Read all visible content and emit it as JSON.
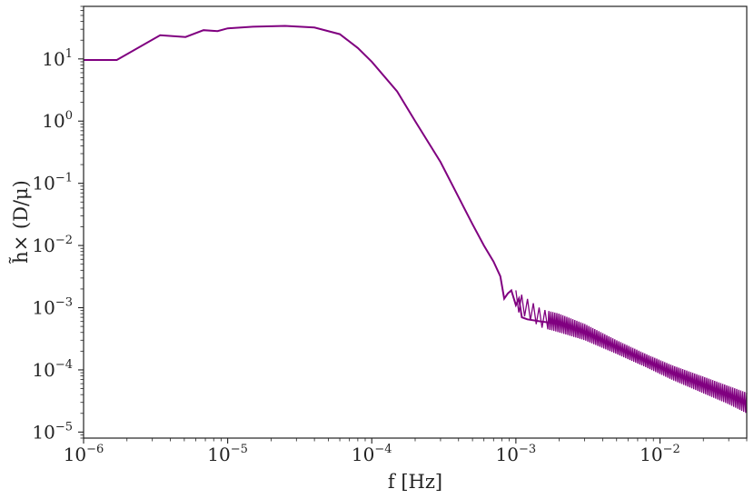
{
  "chart_data": {
    "type": "line",
    "xscale": "log",
    "yscale": "log",
    "xlabel": "f [Hz]",
    "ylabel": "h̃× (D/μ)",
    "xlim": [
      1e-06,
      0.04
    ],
    "ylim": [
      8e-06,
      70
    ],
    "grid": false,
    "legend": "none",
    "x_ticks": [
      {
        "value": 1e-06,
        "base": "10",
        "exp": "−6"
      },
      {
        "value": 1e-05,
        "base": "10",
        "exp": "−5"
      },
      {
        "value": 0.0001,
        "base": "10",
        "exp": "−4"
      },
      {
        "value": 0.001,
        "base": "10",
        "exp": "−3"
      },
      {
        "value": 0.01,
        "base": "10",
        "exp": "−2"
      }
    ],
    "y_ticks": [
      {
        "value": 1e-05,
        "base": "10",
        "exp": "−5"
      },
      {
        "value": 0.0001,
        "base": "10",
        "exp": "−4"
      },
      {
        "value": 0.001,
        "base": "10",
        "exp": "−3"
      },
      {
        "value": 0.01,
        "base": "10",
        "exp": "−2"
      },
      {
        "value": 0.1,
        "base": "10",
        "exp": "−1"
      },
      {
        "value": 1,
        "base": "10",
        "exp": "0"
      },
      {
        "value": 10,
        "base": "10",
        "exp": "1"
      }
    ],
    "series": [
      {
        "color": "#800080",
        "points": [
          [
            1e-06,
            9.6
          ],
          [
            1.7e-06,
            9.6
          ],
          [
            3.4e-06,
            24
          ],
          [
            5.1e-06,
            22.5
          ],
          [
            6.8e-06,
            29
          ],
          [
            8.5e-06,
            28
          ],
          [
            1e-05,
            31
          ],
          [
            1.5e-05,
            33
          ],
          [
            2.5e-05,
            34
          ],
          [
            4e-05,
            32
          ],
          [
            6e-05,
            25
          ],
          [
            8e-05,
            15
          ],
          [
            0.0001,
            9
          ],
          [
            0.00015,
            3
          ],
          [
            0.0002,
            1.0
          ],
          [
            0.0003,
            0.22
          ],
          [
            0.0004,
            0.06
          ],
          [
            0.0005,
            0.022
          ],
          [
            0.0006,
            0.01
          ],
          [
            0.0007,
            0.0055
          ],
          [
            0.00078,
            0.0032
          ],
          [
            0.00083,
            0.0014
          ],
          [
            0.00088,
            0.0017
          ],
          [
            0.00093,
            0.0019
          ],
          [
            0.001,
            0.0011
          ],
          [
            0.00105,
            0.0014
          ],
          [
            0.0011,
            0.0007
          ],
          [
            0.0012,
            0.00065
          ],
          [
            0.0015,
            0.0006
          ],
          [
            0.002,
            0.00055
          ],
          [
            0.003,
            0.0004
          ],
          [
            0.005,
            0.00023
          ],
          [
            0.008,
            0.00014
          ],
          [
            0.012,
            9e-05
          ],
          [
            0.02,
            5.5e-05
          ],
          [
            0.03,
            3.8e-05
          ],
          [
            0.04,
            3e-05
          ]
        ],
        "oscillation_band": {
          "x_start": 0.001,
          "x_end": 0.04,
          "upper": [
            [
              0.001,
              0.0019
            ],
            [
              0.0015,
              0.00095
            ],
            [
              0.002,
              0.0008
            ],
            [
              0.003,
              0.00055
            ],
            [
              0.005,
              0.0003
            ],
            [
              0.008,
              0.00018
            ],
            [
              0.012,
              0.00012
            ],
            [
              0.02,
              7.8e-05
            ],
            [
              0.03,
              5.5e-05
            ],
            [
              0.04,
              4.3e-05
            ]
          ],
          "lower": [
            [
              0.001,
              0.0009
            ],
            [
              0.0015,
              0.00048
            ],
            [
              0.002,
              0.0004
            ],
            [
              0.003,
              0.0003
            ],
            [
              0.005,
              0.00018
            ],
            [
              0.008,
              0.00011
            ],
            [
              0.012,
              7e-05
            ],
            [
              0.02,
              4.2e-05
            ],
            [
              0.03,
              2.8e-05
            ],
            [
              0.04,
              2e-05
            ]
          ]
        }
      }
    ]
  }
}
